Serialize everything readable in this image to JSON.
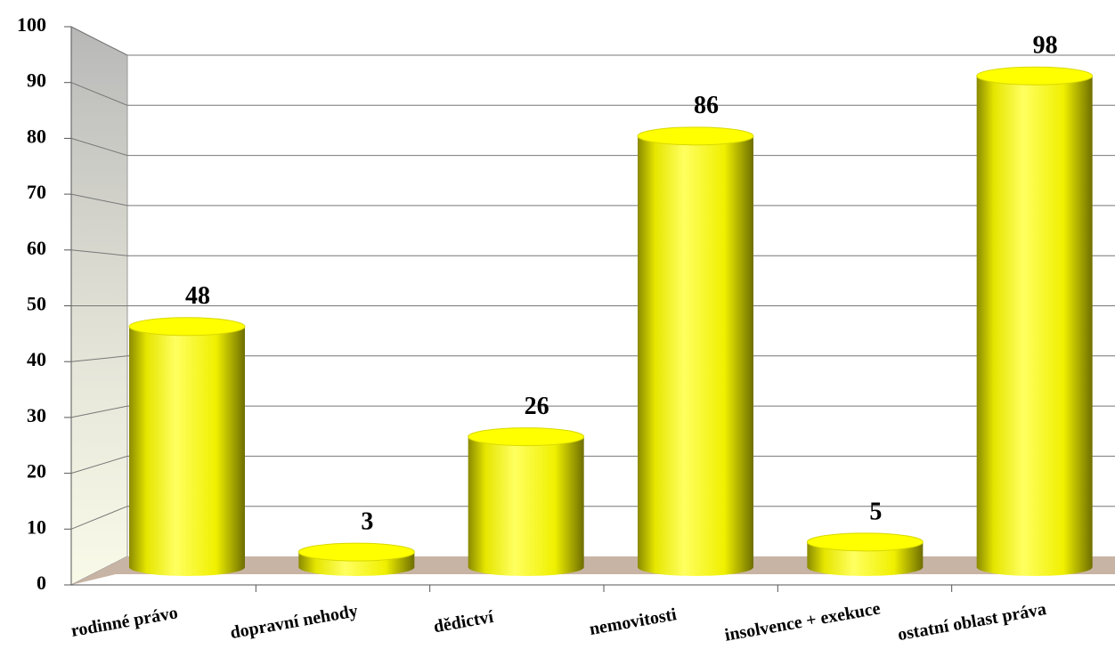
{
  "chart_data": {
    "type": "bar",
    "categories": [
      "rodinné právo",
      "dopravní nehody",
      "dědictví",
      "nemovitosti",
      "insolvence + exekuce",
      "ostatní oblast práva"
    ],
    "values": [
      48,
      3,
      26,
      86,
      5,
      98
    ],
    "color": "#ffff00",
    "ylim": [
      0,
      100
    ],
    "yticks": [
      0,
      10,
      20,
      30,
      40,
      50,
      60,
      70,
      80,
      90,
      100
    ],
    "grid": true
  }
}
